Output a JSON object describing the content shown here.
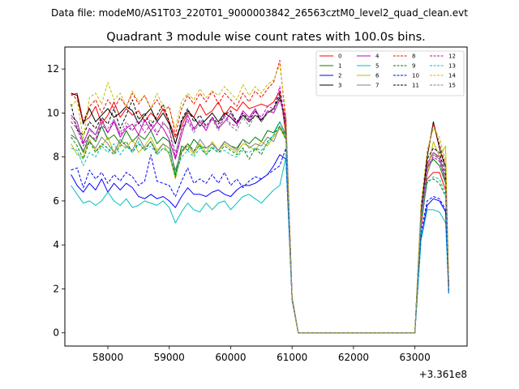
{
  "chart_data": {
    "type": "line",
    "suptitle": "Data file: modeM0/AS1T03_220T01_9000003842_26563cztM0_level2_quad_clean.evt",
    "title": "Quadrant 3 module wise count rates with 100.0s bins.",
    "xlabel": "",
    "ylabel": "",
    "x_offset_label": "+3.361e8",
    "x_offset": 336100000,
    "xlim": [
      57300,
      63850
    ],
    "ylim": [
      -0.6,
      13.0
    ],
    "xticks": [
      58000,
      59000,
      60000,
      61000,
      62000,
      63000
    ],
    "xtick_labels": [
      "58000",
      "59000",
      "60000",
      "61000",
      "62000",
      "63000"
    ],
    "yticks": [
      0,
      2,
      4,
      6,
      8,
      10,
      12
    ],
    "ytick_labels": [
      "0",
      "2",
      "4",
      "6",
      "8",
      "10",
      "12"
    ],
    "legend_position": "upper right",
    "legend_columns": 4,
    "x": [
      57400,
      57500,
      57600,
      57700,
      57800,
      57900,
      58000,
      58100,
      58200,
      58300,
      58400,
      58500,
      58600,
      58700,
      58800,
      58900,
      59000,
      59100,
      59200,
      59300,
      59400,
      59500,
      59600,
      59700,
      59800,
      59900,
      60000,
      60100,
      60200,
      60300,
      60400,
      60500,
      60600,
      60700,
      60800,
      60900,
      61000,
      61100,
      61200,
      61300,
      61400,
      61500,
      61600,
      61700,
      61800,
      61900,
      62000,
      62100,
      62200,
      62300,
      62400,
      62500,
      62600,
      62700,
      62800,
      62900,
      63000,
      63100,
      63200,
      63300,
      63400,
      63500,
      63550
    ],
    "series": [
      {
        "name": "0",
        "color": "#ff0000",
        "style": "solid",
        "values": [
          10.8,
          10.9,
          9.6,
          9.8,
          10.3,
          9.5,
          9.9,
          10.5,
          9.8,
          10.2,
          9.9,
          10.1,
          9.6,
          10.0,
          9.7,
          10.2,
          9.6,
          8.9,
          9.4,
          10.0,
          9.8,
          10.4,
          9.9,
          10.1,
          10.5,
          9.9,
          10.3,
          10.1,
          10.5,
          10.2,
          10.3,
          10.4,
          10.3,
          10.5,
          11.0,
          9.0,
          1.5,
          0.0,
          0.0,
          0.0,
          0.0,
          0.0,
          0.0,
          0.0,
          0.0,
          0.0,
          0.0,
          0.0,
          0.0,
          0.0,
          0.0,
          0.0,
          0.0,
          0.0,
          0.0,
          0.0,
          0.0,
          4.8,
          7.0,
          7.3,
          7.3,
          6.5,
          2.0
        ]
      },
      {
        "name": "1",
        "color": "#008000",
        "style": "solid",
        "values": [
          9.0,
          8.8,
          8.2,
          9.0,
          8.7,
          9.4,
          8.8,
          9.0,
          8.6,
          9.2,
          8.7,
          9.0,
          8.8,
          9.2,
          8.6,
          8.9,
          8.7,
          7.2,
          8.5,
          8.3,
          8.8,
          8.5,
          8.4,
          8.6,
          8.3,
          8.7,
          8.5,
          8.4,
          8.8,
          8.6,
          8.9,
          8.7,
          9.2,
          9.1,
          9.6,
          9.0,
          1.5,
          0.0,
          0.0,
          0.0,
          0.0,
          0.0,
          0.0,
          0.0,
          0.0,
          0.0,
          0.0,
          0.0,
          0.0,
          0.0,
          0.0,
          0.0,
          0.0,
          0.0,
          0.0,
          0.0,
          0.0,
          5.5,
          7.5,
          7.9,
          7.6,
          6.8,
          2.0
        ]
      },
      {
        "name": "2",
        "color": "#0000ff",
        "style": "solid",
        "values": [
          7.2,
          6.7,
          6.4,
          6.8,
          6.5,
          7.0,
          6.4,
          6.8,
          6.5,
          6.8,
          6.6,
          6.2,
          6.1,
          6.3,
          6.1,
          6.2,
          6.0,
          5.7,
          6.2,
          6.6,
          6.3,
          6.3,
          6.2,
          6.4,
          6.5,
          6.3,
          6.2,
          6.5,
          6.7,
          6.7,
          6.8,
          7.0,
          7.2,
          7.6,
          8.1,
          7.9,
          1.5,
          0.0,
          0.0,
          0.0,
          0.0,
          0.0,
          0.0,
          0.0,
          0.0,
          0.0,
          0.0,
          0.0,
          0.0,
          0.0,
          0.0,
          0.0,
          0.0,
          0.0,
          0.0,
          0.0,
          0.0,
          4.3,
          5.8,
          6.1,
          6.0,
          5.5,
          1.8
        ]
      },
      {
        "name": "3",
        "color": "#000000",
        "style": "solid",
        "values": [
          10.9,
          10.8,
          9.5,
          10.2,
          9.6,
          9.9,
          10.2,
          9.8,
          10.0,
          10.3,
          10.1,
          9.5,
          9.9,
          10.2,
          9.6,
          10.0,
          9.5,
          8.6,
          9.6,
          10.1,
          9.8,
          9.4,
          9.7,
          10.0,
          9.6,
          10.0,
          9.8,
          9.5,
          9.9,
          9.6,
          9.9,
          9.7,
          10.0,
          10.2,
          10.7,
          9.5,
          1.6,
          0.0,
          0.0,
          0.0,
          0.0,
          0.0,
          0.0,
          0.0,
          0.0,
          0.0,
          0.0,
          0.0,
          0.0,
          0.0,
          0.0,
          0.0,
          0.0,
          0.0,
          0.0,
          0.0,
          0.0,
          5.5,
          8.0,
          9.6,
          8.4,
          7.5,
          2.2
        ]
      },
      {
        "name": "4",
        "color": "#bf00bf",
        "style": "solid",
        "values": [
          9.9,
          9.6,
          8.6,
          9.3,
          9.0,
          9.7,
          9.1,
          9.6,
          8.9,
          9.3,
          9.5,
          9.0,
          9.7,
          9.2,
          9.6,
          9.3,
          8.8,
          7.9,
          9.0,
          9.9,
          9.3,
          9.6,
          9.2,
          9.8,
          9.3,
          9.6,
          10.0,
          9.5,
          10.1,
          9.8,
          10.2,
          9.6,
          10.1,
          10.0,
          10.6,
          9.8,
          1.6,
          0.0,
          0.0,
          0.0,
          0.0,
          0.0,
          0.0,
          0.0,
          0.0,
          0.0,
          0.0,
          0.0,
          0.0,
          0.0,
          0.0,
          0.0,
          0.0,
          0.0,
          0.0,
          0.0,
          0.0,
          5.4,
          7.7,
          8.2,
          8.0,
          7.0,
          2.1
        ]
      },
      {
        "name": "5",
        "color": "#00bfbf",
        "style": "solid",
        "values": [
          6.7,
          6.3,
          5.9,
          6.0,
          5.8,
          6.0,
          6.4,
          6.0,
          5.8,
          6.1,
          5.7,
          5.8,
          6.0,
          5.9,
          5.8,
          6.0,
          5.7,
          5.0,
          5.5,
          5.9,
          5.6,
          5.5,
          5.9,
          5.6,
          5.9,
          6.0,
          5.6,
          5.9,
          6.2,
          6.3,
          6.1,
          5.9,
          6.2,
          6.5,
          6.7,
          8.0,
          1.5,
          0.0,
          0.0,
          0.0,
          0.0,
          0.0,
          0.0,
          0.0,
          0.0,
          0.0,
          0.0,
          0.0,
          0.0,
          0.0,
          0.0,
          0.0,
          0.0,
          0.0,
          0.0,
          0.0,
          0.0,
          4.2,
          5.6,
          5.6,
          5.5,
          5.0,
          1.8
        ]
      },
      {
        "name": "6",
        "color": "#bfbf00",
        "style": "solid",
        "values": [
          8.6,
          8.1,
          8.0,
          8.8,
          8.3,
          8.5,
          8.9,
          8.2,
          8.6,
          8.4,
          8.8,
          8.2,
          8.5,
          8.9,
          8.3,
          8.6,
          8.1,
          7.0,
          8.2,
          8.5,
          8.1,
          8.6,
          8.2,
          8.7,
          8.3,
          8.6,
          8.4,
          8.2,
          8.6,
          8.5,
          8.3,
          8.7,
          8.5,
          8.9,
          9.3,
          8.8,
          1.5,
          0.0,
          0.0,
          0.0,
          0.0,
          0.0,
          0.0,
          0.0,
          0.0,
          0.0,
          0.0,
          0.0,
          0.0,
          0.0,
          0.0,
          0.0,
          0.0,
          0.0,
          0.0,
          0.0,
          0.0,
          5.0,
          7.3,
          8.7,
          8.0,
          8.5,
          2.2
        ]
      },
      {
        "name": "7",
        "color": "#808080",
        "style": "solid",
        "values": [
          9.4,
          8.8,
          8.3,
          8.7,
          8.4,
          8.9,
          8.6,
          8.2,
          8.8,
          8.5,
          8.3,
          8.9,
          8.4,
          8.7,
          8.2,
          8.6,
          8.4,
          7.4,
          8.3,
          8.6,
          8.2,
          8.8,
          8.4,
          8.6,
          8.3,
          8.7,
          8.5,
          8.3,
          8.8,
          8.4,
          8.6,
          8.5,
          8.9,
          8.7,
          9.4,
          8.9,
          1.5,
          0.0,
          0.0,
          0.0,
          0.0,
          0.0,
          0.0,
          0.0,
          0.0,
          0.0,
          0.0,
          0.0,
          0.0,
          0.0,
          0.0,
          0.0,
          0.0,
          0.0,
          0.0,
          0.0,
          0.0,
          5.2,
          7.2,
          8.1,
          7.9,
          7.0,
          2.0
        ]
      },
      {
        "name": "8",
        "color": "#ff0000",
        "style": "dashed",
        "values": [
          10.9,
          10.6,
          9.6,
          10.3,
          10.6,
          10.0,
          10.6,
          10.2,
          10.7,
          10.3,
          10.9,
          10.4,
          10.8,
          10.2,
          10.6,
          10.1,
          10.3,
          9.0,
          10.2,
          10.8,
          10.4,
          10.9,
          10.5,
          11.0,
          10.4,
          10.9,
          10.6,
          10.3,
          10.9,
          10.5,
          11.0,
          10.7,
          11.1,
          11.4,
          12.4,
          9.5,
          1.6,
          0.0,
          0.0,
          0.0,
          0.0,
          0.0,
          0.0,
          0.0,
          0.0,
          0.0,
          0.0,
          0.0,
          0.0,
          0.0,
          0.0,
          0.0,
          0.0,
          0.0,
          0.0,
          0.0,
          0.0,
          5.8,
          8.1,
          9.5,
          8.6,
          7.6,
          2.2
        ]
      },
      {
        "name": "9",
        "color": "#008000",
        "style": "dashed",
        "values": [
          8.9,
          8.5,
          7.9,
          8.7,
          8.2,
          8.6,
          8.4,
          8.1,
          8.5,
          8.7,
          8.2,
          8.6,
          8.3,
          8.7,
          8.1,
          8.4,
          8.2,
          7.1,
          8.2,
          8.6,
          8.3,
          8.5,
          8.1,
          8.4,
          8.2,
          8.5,
          8.3,
          8.1,
          8.4,
          7.9,
          8.4,
          8.1,
          8.7,
          9.0,
          9.4,
          8.8,
          1.5,
          0.0,
          0.0,
          0.0,
          0.0,
          0.0,
          0.0,
          0.0,
          0.0,
          0.0,
          0.0,
          0.0,
          0.0,
          0.0,
          0.0,
          0.0,
          0.0,
          0.0,
          0.0,
          0.0,
          0.0,
          5.0,
          6.9,
          7.0,
          6.8,
          6.2,
          1.9
        ]
      },
      {
        "name": "10",
        "color": "#0000ff",
        "style": "dashed",
        "values": [
          7.4,
          7.5,
          6.6,
          7.4,
          7.0,
          7.3,
          6.8,
          7.2,
          6.9,
          7.3,
          7.1,
          6.7,
          6.9,
          8.1,
          6.9,
          6.8,
          6.7,
          6.2,
          6.9,
          7.5,
          6.8,
          7.0,
          6.8,
          7.2,
          6.8,
          7.3,
          6.7,
          7.0,
          6.6,
          6.9,
          7.1,
          7.0,
          7.2,
          7.4,
          7.6,
          8.4,
          1.5,
          0.0,
          0.0,
          0.0,
          0.0,
          0.0,
          0.0,
          0.0,
          0.0,
          0.0,
          0.0,
          0.0,
          0.0,
          0.0,
          0.0,
          0.0,
          0.0,
          0.0,
          0.0,
          0.0,
          0.0,
          4.6,
          6.0,
          6.2,
          6.1,
          5.6,
          1.8
        ]
      },
      {
        "name": "11",
        "color": "#000000",
        "style": "dashed",
        "values": [
          10.4,
          9.2,
          9.0,
          9.6,
          9.3,
          9.8,
          9.5,
          10.2,
          9.3,
          9.9,
          10.6,
          9.7,
          10.0,
          9.4,
          9.9,
          10.4,
          9.6,
          8.6,
          9.7,
          10.2,
          9.6,
          9.9,
          9.4,
          9.8,
          9.5,
          9.9,
          10.1,
          9.6,
          10.0,
          9.7,
          10.1,
          9.6,
          10.0,
          10.2,
          10.9,
          9.3,
          1.6,
          0.0,
          0.0,
          0.0,
          0.0,
          0.0,
          0.0,
          0.0,
          0.0,
          0.0,
          0.0,
          0.0,
          0.0,
          0.0,
          0.0,
          0.0,
          0.0,
          0.0,
          0.0,
          0.0,
          0.0,
          5.6,
          7.9,
          8.4,
          8.2,
          7.2,
          2.1
        ]
      },
      {
        "name": "12",
        "color": "#bf00bf",
        "style": "dashed",
        "values": [
          9.6,
          9.3,
          8.5,
          9.0,
          8.8,
          9.5,
          9.1,
          9.7,
          9.0,
          9.4,
          9.2,
          9.6,
          9.1,
          9.5,
          9.0,
          9.6,
          9.2,
          8.0,
          9.3,
          9.7,
          9.2,
          9.7,
          9.4,
          9.8,
          9.3,
          9.9,
          9.5,
          9.4,
          10.0,
          9.6,
          10.1,
          9.8,
          10.3,
          10.2,
          11.2,
          9.4,
          1.6,
          0.0,
          0.0,
          0.0,
          0.0,
          0.0,
          0.0,
          0.0,
          0.0,
          0.0,
          0.0,
          0.0,
          0.0,
          0.0,
          0.0,
          0.0,
          0.0,
          0.0,
          0.0,
          0.0,
          0.0,
          5.3,
          7.5,
          8.0,
          7.8,
          6.9,
          2.0
        ]
      },
      {
        "name": "13",
        "color": "#00bfbf",
        "style": "dashed",
        "values": [
          8.4,
          8.3,
          7.6,
          8.2,
          8.0,
          8.5,
          8.2,
          8.6,
          8.1,
          8.5,
          8.2,
          8.7,
          8.3,
          8.5,
          8.1,
          8.4,
          8.2,
          7.2,
          8.0,
          8.3,
          8.0,
          8.4,
          8.1,
          8.5,
          8.2,
          8.3,
          8.1,
          8.0,
          8.3,
          8.2,
          8.4,
          8.3,
          8.6,
          9.0,
          9.6,
          8.9,
          1.5,
          0.0,
          0.0,
          0.0,
          0.0,
          0.0,
          0.0,
          0.0,
          0.0,
          0.0,
          0.0,
          0.0,
          0.0,
          0.0,
          0.0,
          0.0,
          0.0,
          0.0,
          0.0,
          0.0,
          0.0,
          5.0,
          6.8,
          7.1,
          7.0,
          6.3,
          1.9
        ]
      },
      {
        "name": "14",
        "color": "#bfbf00",
        "style": "dashed",
        "values": [
          10.3,
          10.6,
          8.8,
          10.7,
          10.9,
          10.4,
          11.4,
          10.6,
          10.9,
          10.3,
          11.0,
          10.5,
          10.8,
          10.2,
          10.9,
          10.3,
          10.2,
          9.3,
          10.5,
          10.9,
          10.6,
          11.1,
          10.7,
          11.0,
          10.8,
          11.2,
          10.9,
          10.6,
          11.3,
          10.8,
          11.2,
          10.9,
          11.3,
          11.5,
          12.2,
          9.9,
          1.6,
          0.0,
          0.0,
          0.0,
          0.0,
          0.0,
          0.0,
          0.0,
          0.0,
          0.0,
          0.0,
          0.0,
          0.0,
          0.0,
          0.0,
          0.0,
          0.0,
          0.0,
          0.0,
          0.0,
          0.0,
          5.9,
          8.3,
          9.3,
          8.9,
          7.8,
          2.3
        ]
      },
      {
        "name": "15",
        "color": "#808080",
        "style": "dashed",
        "values": [
          9.8,
          9.4,
          8.7,
          9.2,
          9.0,
          9.5,
          9.3,
          9.7,
          9.1,
          9.6,
          9.2,
          9.8,
          9.4,
          9.7,
          9.1,
          9.5,
          9.3,
          8.2,
          9.2,
          9.6,
          9.1,
          9.6,
          9.3,
          9.7,
          9.2,
          9.8,
          9.4,
          9.2,
          9.8,
          9.4,
          9.9,
          9.6,
          10.0,
          10.1,
          10.8,
          9.3,
          1.6,
          0.0,
          0.0,
          0.0,
          0.0,
          0.0,
          0.0,
          0.0,
          0.0,
          0.0,
          0.0,
          0.0,
          0.0,
          0.0,
          0.0,
          0.0,
          0.0,
          0.0,
          0.0,
          0.0,
          0.0,
          5.3,
          7.6,
          8.2,
          7.9,
          6.9,
          2.0
        ]
      }
    ]
  }
}
